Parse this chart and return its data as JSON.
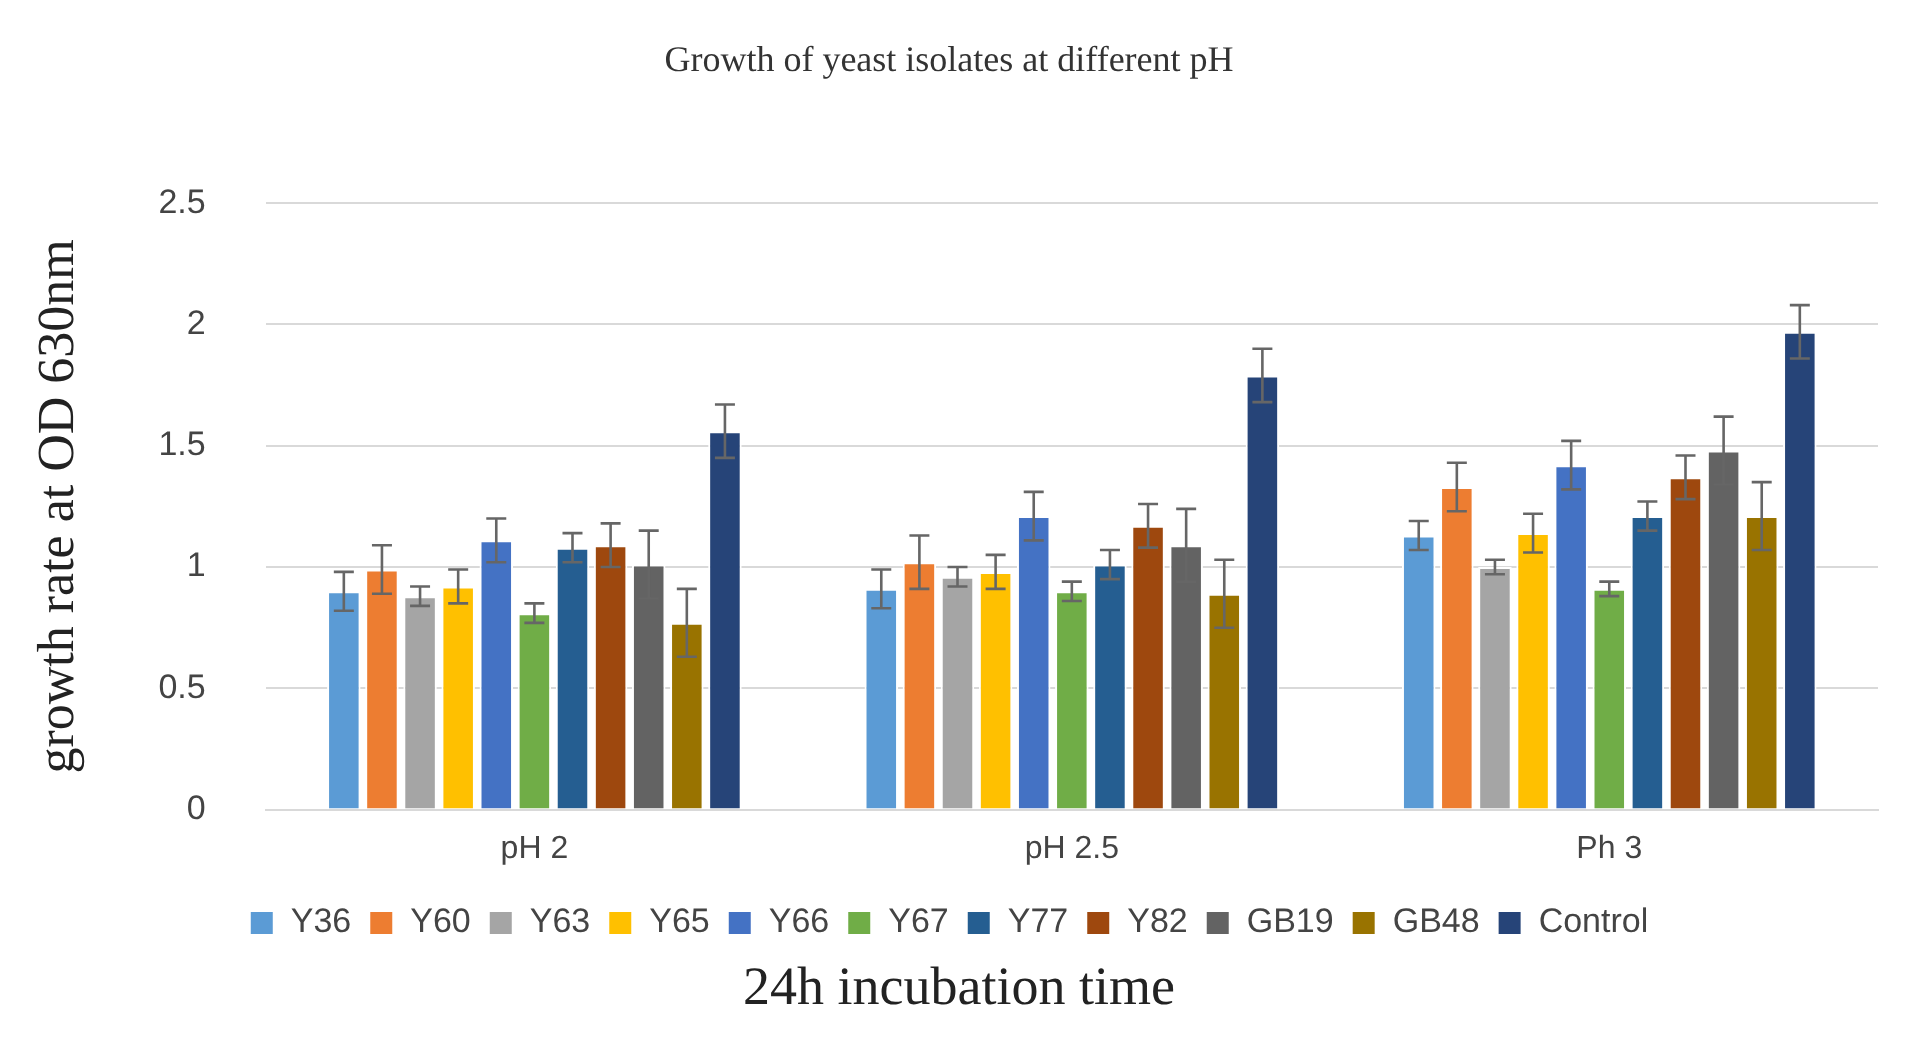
{
  "chart_data": {
    "type": "bar",
    "title": "Growth of yeast isolates at different pH",
    "xlabel": "24h incubation time",
    "ylabel": "growth rate at OD 630nm",
    "categories": [
      "pH 2",
      "pH 2.5",
      "Ph 3"
    ],
    "ylim": [
      0,
      2.5
    ],
    "yticks": [
      0,
      0.5,
      1,
      1.5,
      2,
      2.5
    ],
    "grid": "y",
    "legend": "bottom",
    "series": [
      {
        "name": "Y36",
        "color": "#5b9bd5",
        "values": [
          0.9,
          0.91,
          1.13
        ],
        "errors": [
          0.08,
          0.08,
          0.06
        ]
      },
      {
        "name": "Y60",
        "color": "#ed7d31",
        "values": [
          0.99,
          1.02,
          1.33
        ],
        "errors": [
          0.1,
          0.11,
          0.1
        ]
      },
      {
        "name": "Y63",
        "color": "#a5a5a5",
        "values": [
          0.88,
          0.96,
          1.0
        ],
        "errors": [
          0.04,
          0.04,
          0.03
        ]
      },
      {
        "name": "Y65",
        "color": "#ffc000",
        "values": [
          0.92,
          0.98,
          1.14
        ],
        "errors": [
          0.07,
          0.07,
          0.08
        ]
      },
      {
        "name": "Y66",
        "color": "#4472c4",
        "values": [
          1.11,
          1.21,
          1.42
        ],
        "errors": [
          0.09,
          0.1,
          0.1
        ]
      },
      {
        "name": "Y67",
        "color": "#70ad47",
        "values": [
          0.81,
          0.9,
          0.91
        ],
        "errors": [
          0.04,
          0.04,
          0.03
        ]
      },
      {
        "name": "Y77",
        "color": "#255e91",
        "values": [
          1.08,
          1.01,
          1.21
        ],
        "errors": [
          0.06,
          0.06,
          0.06
        ]
      },
      {
        "name": "Y82",
        "color": "#9e480e",
        "values": [
          1.09,
          1.17,
          1.37
        ],
        "errors": [
          0.09,
          0.09,
          0.09
        ]
      },
      {
        "name": "GB19",
        "color": "#636363",
        "values": [
          1.01,
          1.09,
          1.48
        ],
        "errors": [
          0.14,
          0.15,
          0.14
        ]
      },
      {
        "name": "GB48",
        "color": "#997300",
        "values": [
          0.77,
          0.89,
          1.21
        ],
        "errors": [
          0.14,
          0.14,
          0.14
        ]
      },
      {
        "name": "Control",
        "color": "#264478",
        "values": [
          1.56,
          1.79,
          1.97
        ],
        "errors": [
          0.11,
          0.11,
          0.11
        ]
      }
    ]
  }
}
